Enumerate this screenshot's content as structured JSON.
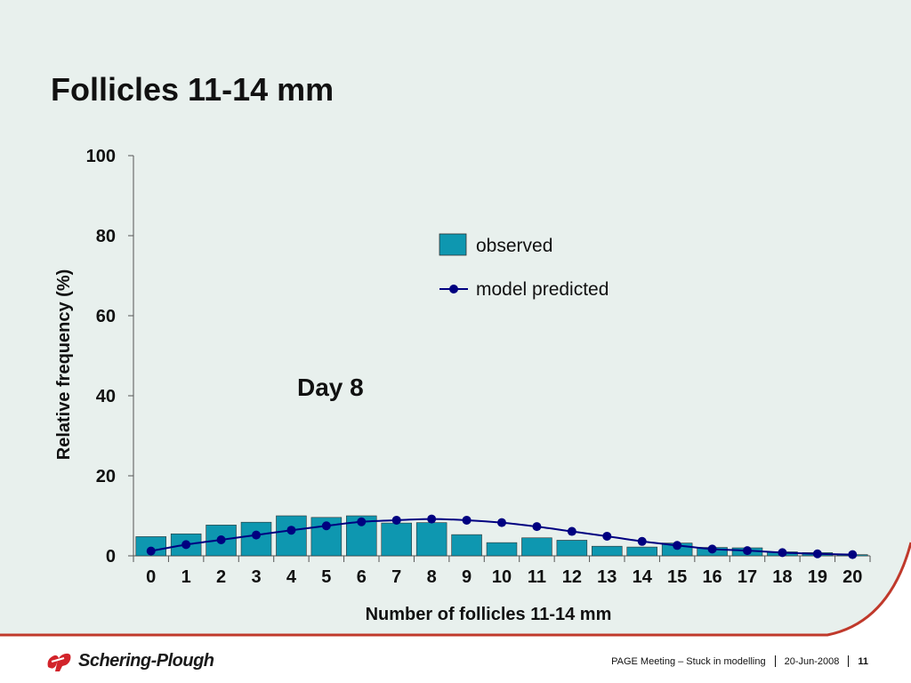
{
  "slide": {
    "title": "Follicles 11-14 mm",
    "annotation": "Day 8",
    "footer": {
      "logo_text": "Schering-Plough",
      "meeting": "PAGE Meeting – Stuck in modelling",
      "date": "20-Jun-2008",
      "page_number": "11"
    }
  },
  "colors": {
    "background": "#e8f0ed",
    "accent_curve": "#c0392b",
    "bar_fill": "#0e97b0",
    "line": "#000080",
    "logo_red": "#d2232a"
  },
  "chart_data": {
    "type": "bar",
    "xlabel": "Number of follicles 11-14 mm",
    "ylabel": "Relative frequency (%)",
    "ylim": [
      0,
      100
    ],
    "yticks": [
      0,
      20,
      40,
      60,
      80,
      100
    ],
    "categories": [
      "0",
      "1",
      "2",
      "3",
      "4",
      "5",
      "6",
      "7",
      "8",
      "9",
      "10",
      "11",
      "12",
      "13",
      "14",
      "15",
      "16",
      "17",
      "18",
      "19",
      "20"
    ],
    "series": [
      {
        "name": "observed",
        "type": "bar",
        "values": [
          4.8,
          5.5,
          7.7,
          8.4,
          10.0,
          9.6,
          10.0,
          8.2,
          8.3,
          5.3,
          3.3,
          4.5,
          3.9,
          2.4,
          2.2,
          3.2,
          2.1,
          2.0,
          1.0,
          0.8,
          0.3
        ]
      },
      {
        "name": "model predicted",
        "type": "line",
        "values": [
          1.2,
          2.8,
          4.0,
          5.2,
          6.4,
          7.5,
          8.5,
          8.9,
          9.2,
          8.9,
          8.3,
          7.3,
          6.1,
          4.9,
          3.6,
          2.6,
          1.7,
          1.3,
          0.8,
          0.5,
          0.3
        ]
      }
    ],
    "legend": "right, upper",
    "grid": false
  }
}
